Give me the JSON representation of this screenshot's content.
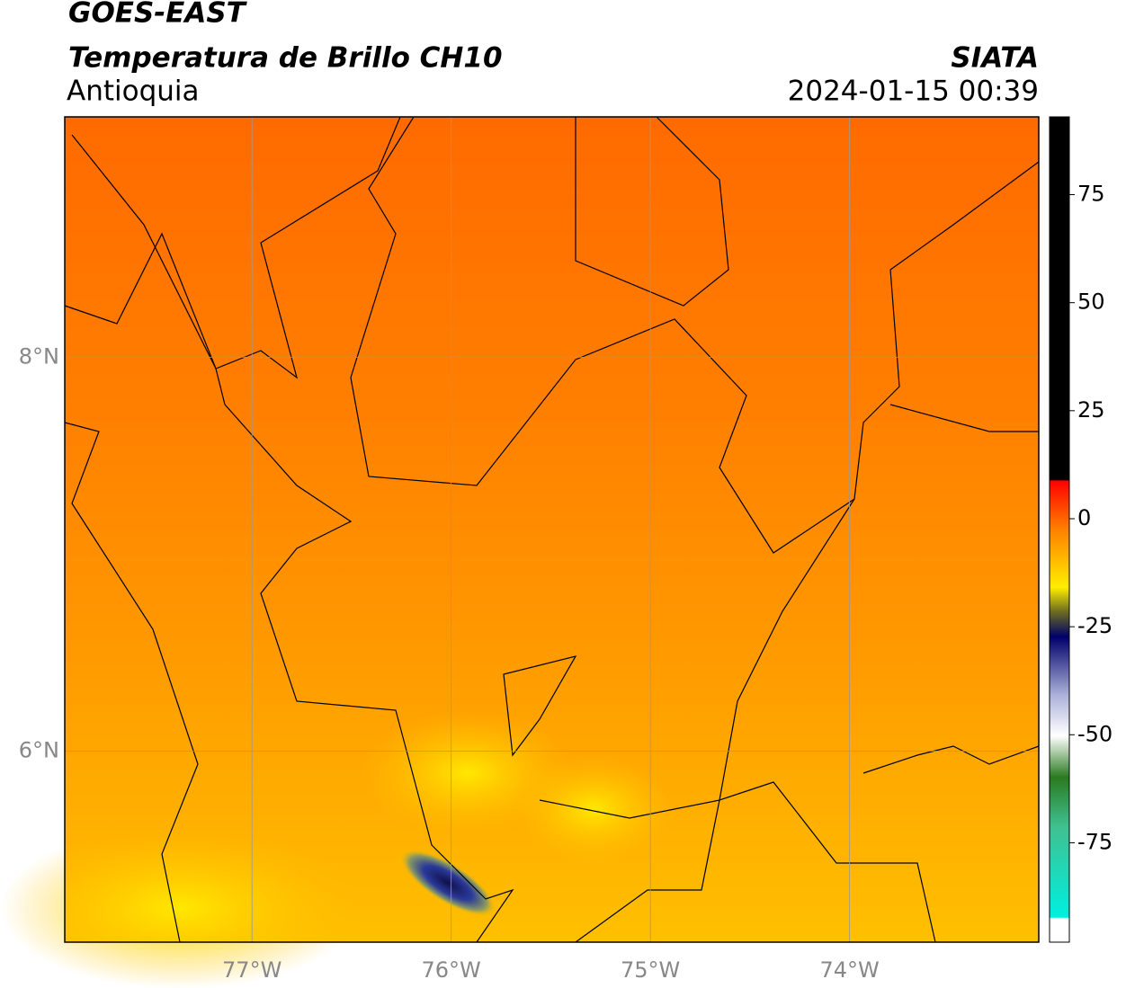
{
  "header": {
    "title": "GOES-EAST",
    "subtitle": "Temperatura de Brillo CH10",
    "region": "Antioquia",
    "source": "SIATA",
    "datetime": "2024-01-15 00:39"
  },
  "map": {
    "xlim": [
      -77.94,
      -73.05
    ],
    "ylim": [
      5.03,
      9.22
    ],
    "xticks": [
      {
        "value": -77,
        "label": "77°W"
      },
      {
        "value": -76,
        "label": "76°W"
      },
      {
        "value": -75,
        "label": "75°W"
      },
      {
        "value": -74,
        "label": "74°W"
      }
    ],
    "yticks": [
      {
        "value": 8,
        "label": "8°N"
      },
      {
        "value": 6,
        "label": "6°N"
      }
    ],
    "grid": true
  },
  "colorbar": {
    "lim": [
      -98,
      93
    ],
    "ticks": [
      75,
      50,
      25,
      0,
      -25,
      -50,
      -75
    ]
  }
}
